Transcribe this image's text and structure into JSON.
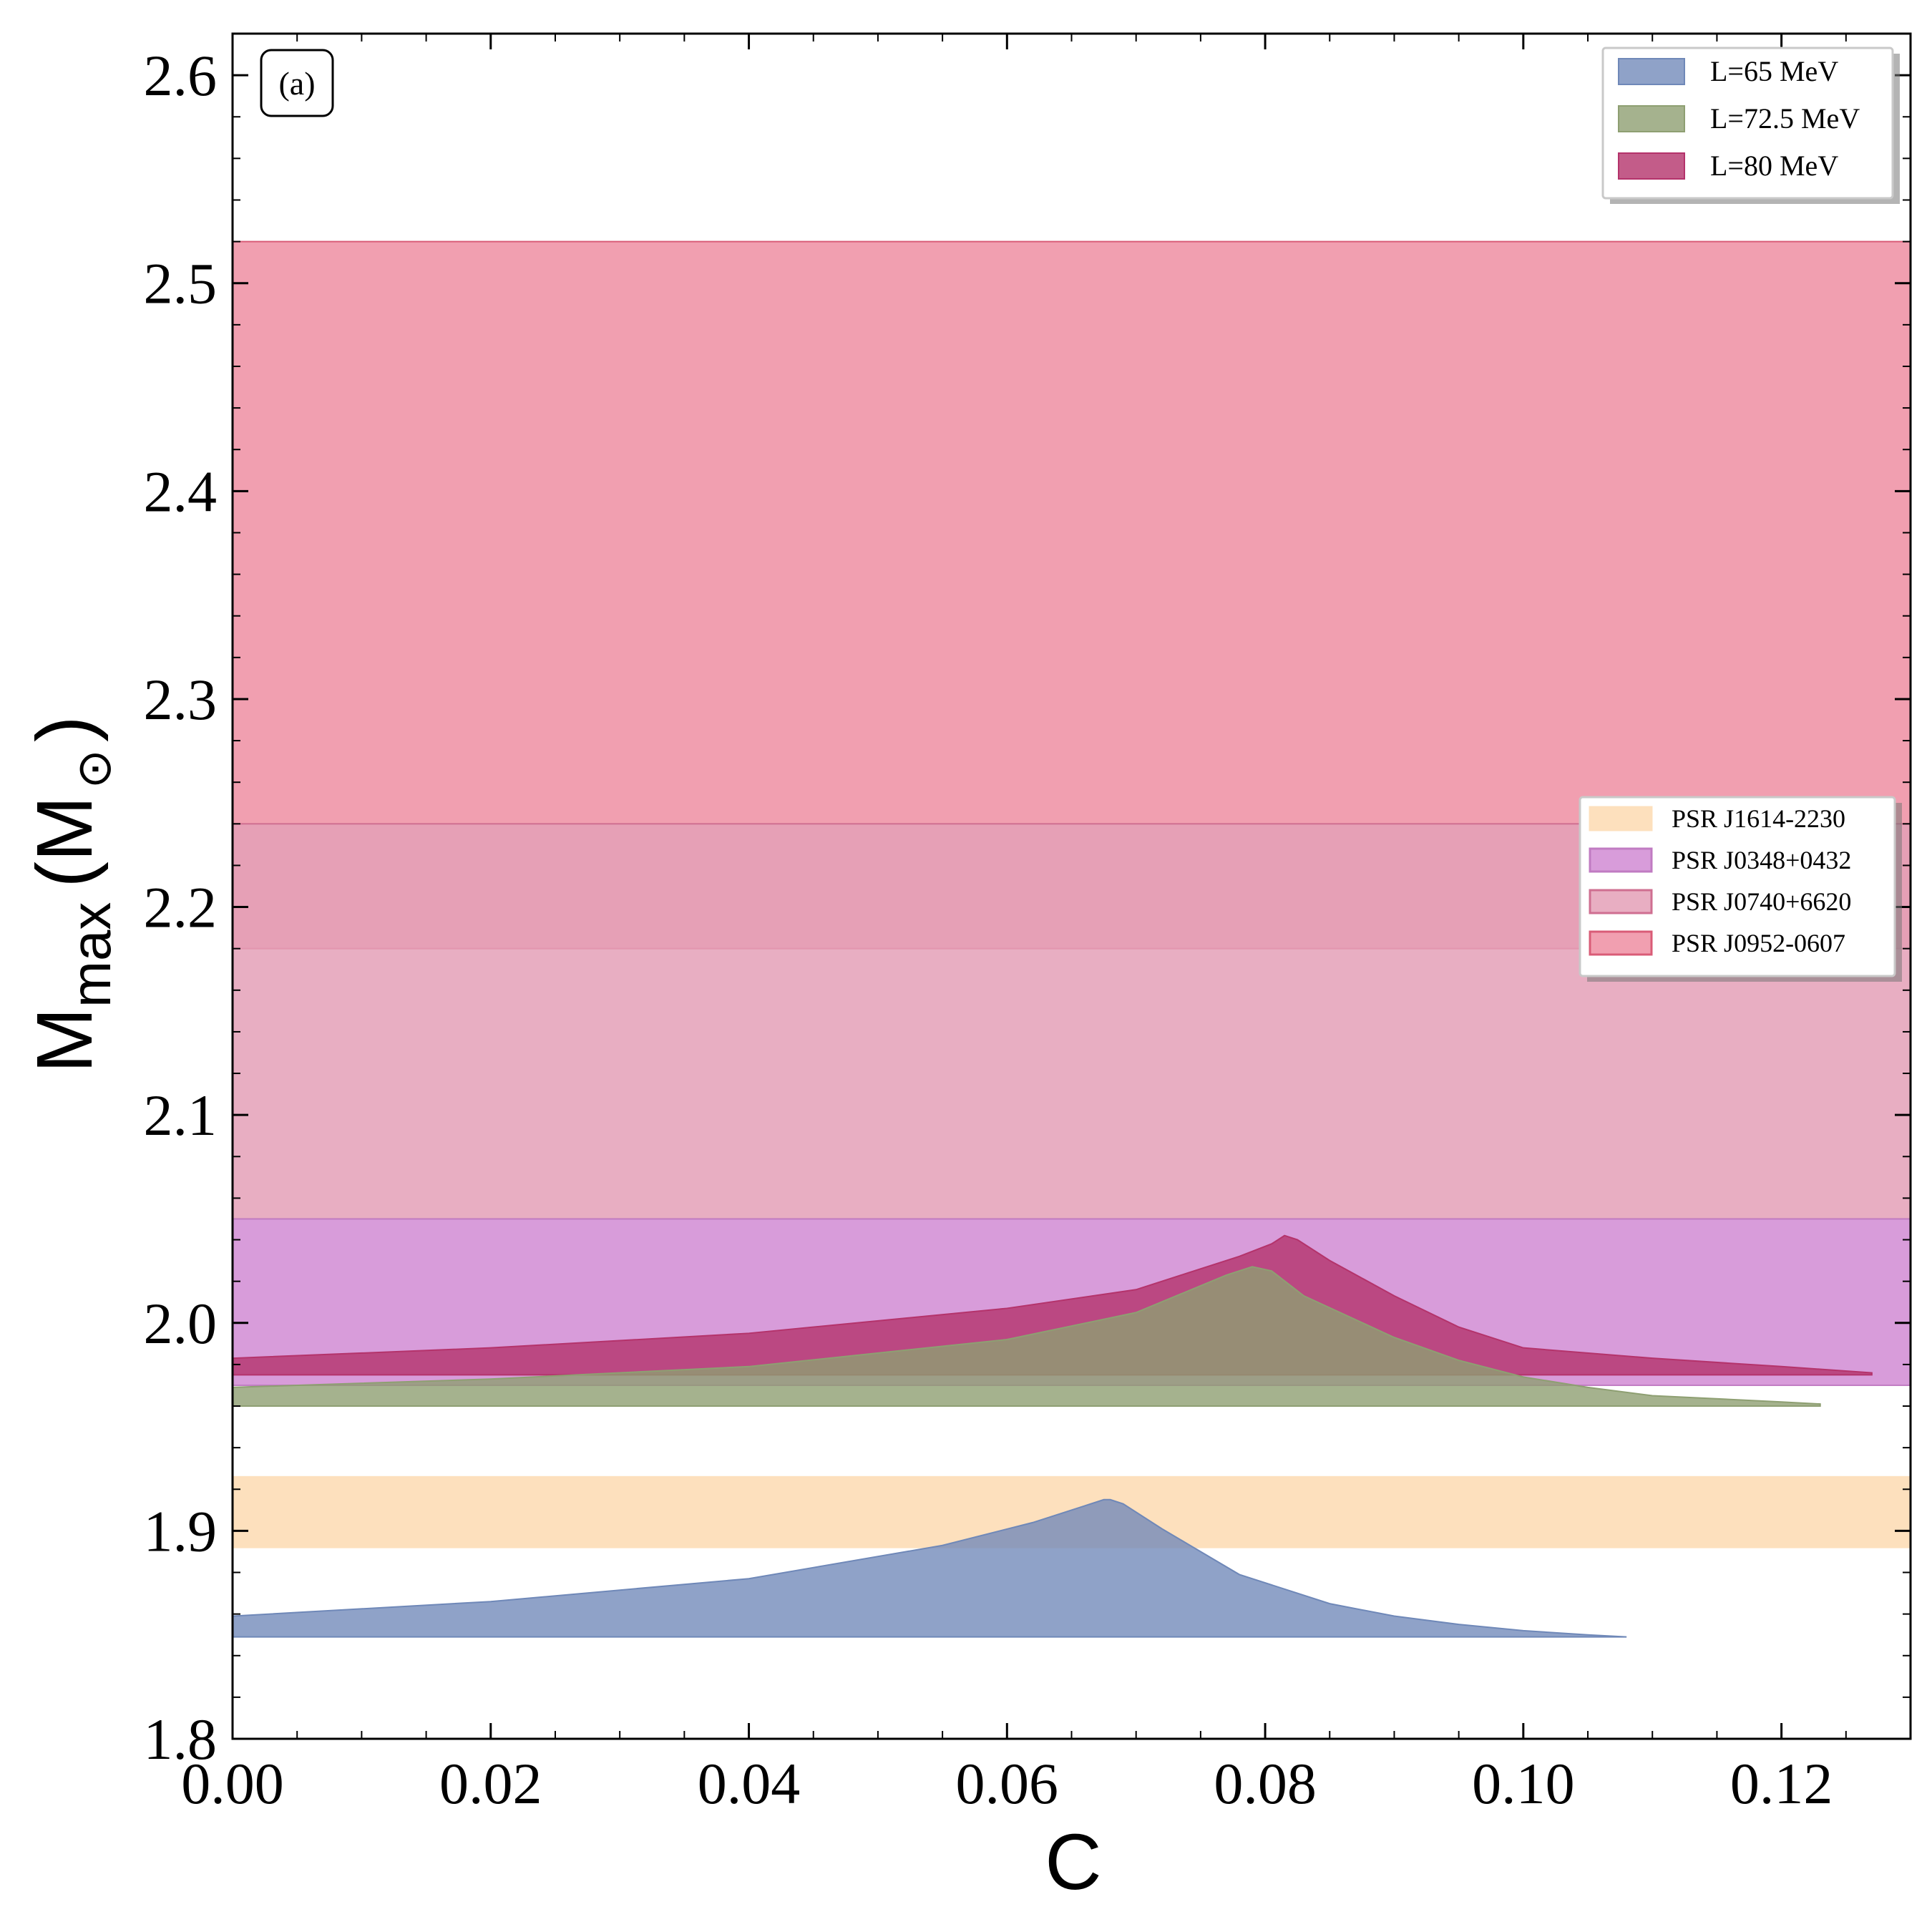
{
  "chart_data": {
    "type": "area",
    "panel_label": "(a)",
    "xlabel": "C",
    "ylabel": {
      "main": "M",
      "sub": "max",
      "unit": "(M",
      "unit_symbol": "⊙",
      "unit_close": ")"
    },
    "xlim": [
      0.0,
      0.13
    ],
    "ylim": [
      1.8,
      2.62
    ],
    "x_ticks": [
      0.0,
      0.02,
      0.04,
      0.06,
      0.08,
      0.1,
      0.12
    ],
    "x_tick_labels": [
      "0.00",
      "0.02",
      "0.04",
      "0.06",
      "0.08",
      "0.10",
      "0.12"
    ],
    "y_ticks": [
      1.8,
      1.9,
      2.0,
      2.1,
      2.2,
      2.3,
      2.4,
      2.5,
      2.6
    ],
    "y_tick_labels": [
      "1.8",
      "1.9",
      "2.0",
      "2.1",
      "2.2",
      "2.3",
      "2.4",
      "2.5",
      "2.6"
    ],
    "grid": false,
    "constraint_bands": [
      {
        "name": "PSR J0952-0607",
        "y_range": [
          2.18,
          2.52
        ],
        "color": "#ee8ea2",
        "edge": "#d95c77",
        "opacity": 0.85
      },
      {
        "name": "PSR J0740+6620",
        "y_range": [
          2.05,
          2.24
        ],
        "color": "#e4a0b7",
        "edge": "#cf6f91",
        "opacity": 0.85
      },
      {
        "name": "PSR J0348+0432",
        "y_range": [
          1.97,
          2.05
        ],
        "color": "#d491d6",
        "edge": "#c07bc2",
        "opacity": 0.9
      },
      {
        "name": "PSR J1614-2230",
        "y_range": [
          1.892,
          1.926
        ],
        "color": "#fde0bd",
        "edge": "#fde0bd",
        "opacity": 1.0
      }
    ],
    "band_legend": {
      "placement": "center-right",
      "order": [
        "PSR J1614-2230",
        "PSR J0348+0432",
        "PSR J0740+6620",
        "PSR J0952-0607"
      ]
    },
    "series": [
      {
        "name": "L=80 MeV",
        "color": "#b4336b",
        "opacity": 0.8,
        "baseline": 1.975,
        "x": [
          0.0,
          0.02,
          0.04,
          0.06,
          0.07,
          0.078,
          0.0805,
          0.0815,
          0.0825,
          0.085,
          0.09,
          0.095,
          0.1,
          0.11,
          0.12,
          0.127
        ],
        "y": [
          1.983,
          1.988,
          1.995,
          2.007,
          2.016,
          2.032,
          2.038,
          2.042,
          2.04,
          2.03,
          2.013,
          1.998,
          1.988,
          1.983,
          1.979,
          1.976
        ]
      },
      {
        "name": "L=72.5 MeV",
        "color": "#8e9f72",
        "opacity": 0.8,
        "baseline": 1.96,
        "x": [
          0.0,
          0.02,
          0.04,
          0.06,
          0.07,
          0.077,
          0.079,
          0.0805,
          0.083,
          0.09,
          0.095,
          0.1,
          0.105,
          0.11,
          0.12,
          0.123
        ],
        "y": [
          1.969,
          1.973,
          1.979,
          1.992,
          2.005,
          2.023,
          2.027,
          2.025,
          2.013,
          1.993,
          1.982,
          1.974,
          1.969,
          1.965,
          1.962,
          1.961
        ]
      },
      {
        "name": "L=65 MeV",
        "color": "#6f88b8",
        "opacity": 0.78,
        "baseline": 1.849,
        "x": [
          0.0,
          0.02,
          0.04,
          0.055,
          0.062,
          0.066,
          0.0675,
          0.068,
          0.069,
          0.072,
          0.078,
          0.085,
          0.09,
          0.095,
          0.1,
          0.105,
          0.108
        ],
        "y": [
          1.859,
          1.866,
          1.877,
          1.893,
          1.904,
          1.912,
          1.915,
          1.915,
          1.913,
          1.901,
          1.879,
          1.865,
          1.859,
          1.855,
          1.852,
          1.85,
          1.849
        ]
      }
    ],
    "series_legend": {
      "placement": "top-right",
      "order": [
        "L=65 MeV",
        "L=72.5 MeV",
        "L=80 MeV"
      ]
    }
  }
}
